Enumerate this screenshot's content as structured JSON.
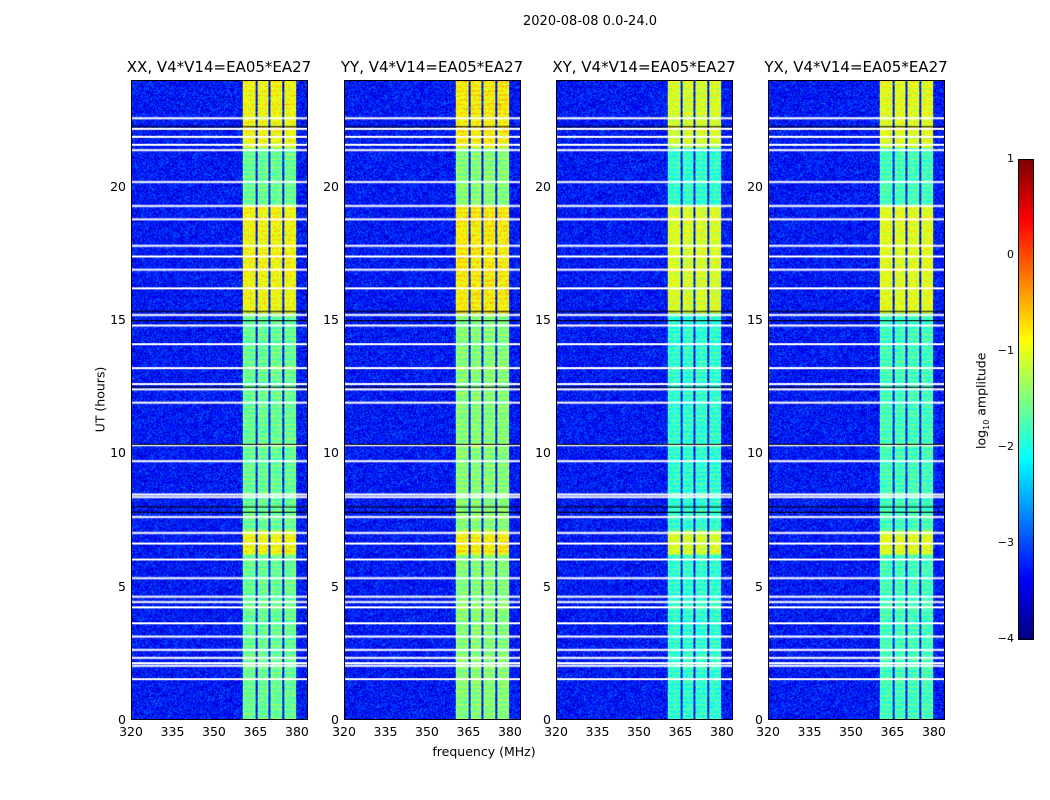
{
  "chart_data": {
    "type": "heatmap",
    "title": "2020-08-08 0.0-24.0",
    "xlabel": "frequency (MHz)",
    "ylabel": "UT (hours)",
    "xlim": [
      320,
      384
    ],
    "ylim": [
      0,
      24
    ],
    "xticks": [
      "320",
      "335",
      "350",
      "365",
      "380"
    ],
    "yticks": [
      "0",
      "5",
      "10",
      "15",
      "20"
    ],
    "panels": [
      {
        "title": "XX, V4*V14=EA05*EA27",
        "bright_scale": 1.0
      },
      {
        "title": "YY, V4*V14=EA05*EA27",
        "bright_scale": 1.1
      },
      {
        "title": "XY, V4*V14=EA05*EA27",
        "bright_scale": 0.85
      },
      {
        "title": "YX, V4*V14=EA05*EA27",
        "bright_scale": 0.9
      }
    ],
    "background_log_amplitude": -3.3,
    "bright_bands_mhz": [
      [
        360.4,
        365.1
      ],
      [
        365.8,
        369.7
      ],
      [
        370.5,
        374.8
      ],
      [
        375.6,
        379.9
      ]
    ],
    "band_log_amplitude": -1.6,
    "enhanced_hours": [
      [
        15.3,
        19.3
      ],
      [
        6.2,
        7.1
      ],
      [
        21.5,
        24
      ]
    ],
    "enhanced_log_amplitude": -0.9,
    "flagged_hours_white": [
      1.5,
      2.0,
      2.1,
      2.3,
      2.6,
      3.1,
      3.6,
      4.2,
      4.4,
      4.6,
      5.3,
      6.0,
      6.6,
      7.0,
      7.6,
      8.35,
      8.45,
      9.7,
      10.3,
      11.9,
      12.4,
      12.6,
      13.2,
      14.1,
      14.8,
      15.2,
      16.2,
      16.9,
      17.4,
      17.8,
      18.8,
      19.3,
      20.2,
      21.4,
      21.6,
      21.9,
      22.2,
      22.6
    ],
    "flagged_hours_black": [
      7.8,
      8.0,
      10.35,
      12.5,
      15.0,
      15.35,
      22.3
    ],
    "colorbar": {
      "label": "log10 amplitude",
      "label_main": "log",
      "label_sub": "10",
      "label_rest": " amplitude",
      "ticks": [
        "1",
        "0",
        "−1",
        "−2",
        "−3",
        "−4"
      ],
      "range": [
        -4,
        1
      ],
      "colormap": "jet"
    }
  }
}
